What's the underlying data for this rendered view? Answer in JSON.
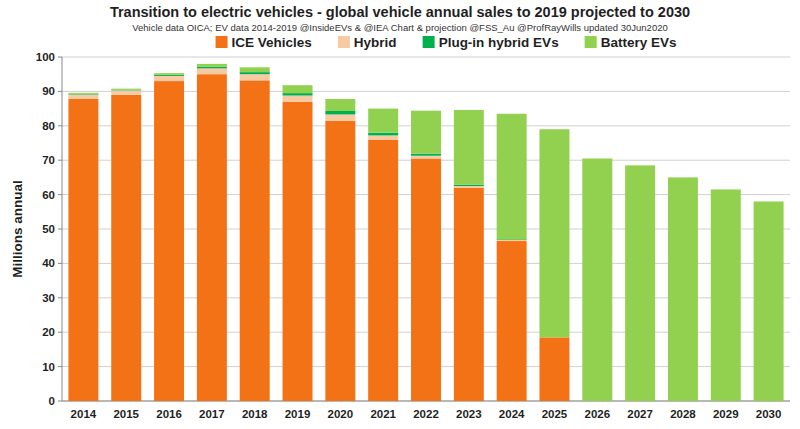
{
  "chart_data": {
    "type": "bar",
    "stacked": true,
    "title": "Transition to electric vehicles  - global vehicle annual sales to 2019 projected to 2030",
    "subtitle": "Vehicle data OICA; EV data 2014-2019 @InsideEVs & @IEA  Chart & projection @FSS_Au @ProfRayWills updated 30Jun2020",
    "y_label": "Millions annual",
    "categories": [
      "2014",
      "2015",
      "2016",
      "2017",
      "2018",
      "2019",
      "2020",
      "2021",
      "2022",
      "2023",
      "2024",
      "2025",
      "2026",
      "2027",
      "2028",
      "2029",
      "2030"
    ],
    "series": [
      {
        "name": "ICE Vehicles",
        "color": "#f47216",
        "values": [
          87.8,
          89.0,
          93.0,
          95.0,
          93.2,
          87.0,
          81.5,
          76.0,
          70.5,
          62.0,
          46.5,
          18.5,
          0,
          0,
          0,
          0,
          0
        ]
      },
      {
        "name": "Hybrid",
        "color": "#f8caa4",
        "values": [
          1.3,
          1.3,
          1.5,
          1.7,
          1.8,
          1.8,
          1.8,
          1.2,
          0.8,
          0.5,
          0.3,
          0,
          0,
          0,
          0,
          0,
          0
        ]
      },
      {
        "name": "Plug-in hybrid EVs",
        "color": "#00b050",
        "values": [
          0.2,
          0.2,
          0.3,
          0.5,
          0.6,
          0.7,
          1.0,
          0.8,
          0.6,
          0.4,
          0.2,
          0,
          0,
          0,
          0,
          0,
          0
        ]
      },
      {
        "name": "Battery EVs",
        "color": "#92d050",
        "values": [
          0.3,
          0.3,
          0.5,
          0.8,
          1.4,
          2.3,
          3.5,
          7.0,
          12.5,
          21.7,
          36.5,
          60.5,
          70.5,
          68.5,
          65.0,
          61.5,
          58.0
        ]
      }
    ],
    "ylim": [
      0,
      100
    ],
    "yticks": [
      0,
      10,
      20,
      30,
      40,
      50,
      60,
      70,
      80,
      90,
      100
    ],
    "grid": true,
    "legend": "top"
  }
}
